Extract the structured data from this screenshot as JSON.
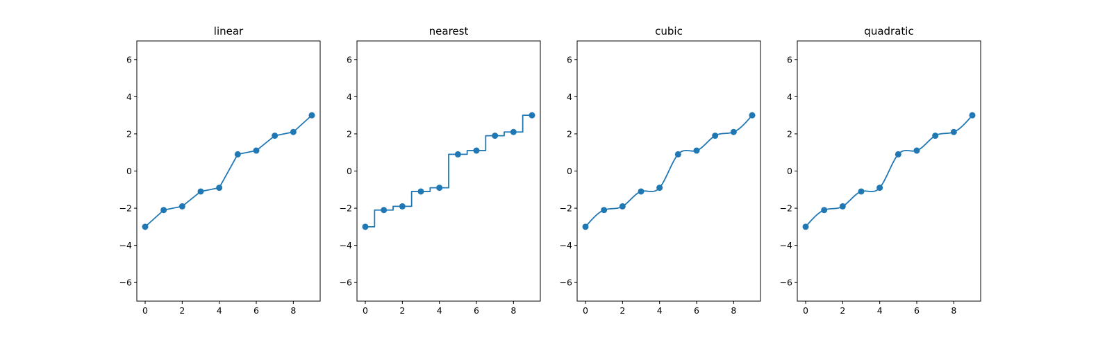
{
  "figure": {
    "background": "#ffffff",
    "line_color": "#1f77b4",
    "marker_color": "#1f77b4"
  },
  "chart_data": [
    {
      "type": "line",
      "title": "linear",
      "interpolation": "linear",
      "x": [
        0,
        1,
        2,
        3,
        4,
        5,
        6,
        7,
        8,
        9
      ],
      "y": [
        -3,
        -2.1,
        -1.9,
        -1.1,
        -0.9,
        0.9,
        1.1,
        1.9,
        2.1,
        3
      ],
      "xlim": [
        -0.45,
        9.45
      ],
      "ylim": [
        -7,
        7
      ],
      "xticks": [
        0,
        2,
        4,
        6,
        8
      ],
      "yticks": [
        -6,
        -4,
        -2,
        0,
        2,
        4,
        6
      ],
      "xtick_labels": [
        "0",
        "2",
        "4",
        "6",
        "8"
      ],
      "ytick_labels": [
        "−6",
        "−4",
        "−2",
        "0",
        "2",
        "4",
        "6"
      ],
      "markers": true,
      "grid": false
    },
    {
      "type": "line",
      "title": "nearest",
      "interpolation": "nearest",
      "x": [
        0,
        1,
        2,
        3,
        4,
        5,
        6,
        7,
        8,
        9
      ],
      "y": [
        -3,
        -2.1,
        -1.9,
        -1.1,
        -0.9,
        0.9,
        1.1,
        1.9,
        2.1,
        3
      ],
      "xlim": [
        -0.45,
        9.45
      ],
      "ylim": [
        -7,
        7
      ],
      "xticks": [
        0,
        2,
        4,
        6,
        8
      ],
      "yticks": [
        -6,
        -4,
        -2,
        0,
        2,
        4,
        6
      ],
      "xtick_labels": [
        "0",
        "2",
        "4",
        "6",
        "8"
      ],
      "ytick_labels": [
        "−6",
        "−4",
        "−2",
        "0",
        "2",
        "4",
        "6"
      ],
      "markers": true,
      "grid": false
    },
    {
      "type": "line",
      "title": "cubic",
      "interpolation": "cubic",
      "x": [
        0,
        1,
        2,
        3,
        4,
        5,
        6,
        7,
        8,
        9
      ],
      "y": [
        -3,
        -2.1,
        -1.9,
        -1.1,
        -0.9,
        0.9,
        1.1,
        1.9,
        2.1,
        3
      ],
      "xlim": [
        -0.45,
        9.45
      ],
      "ylim": [
        -7,
        7
      ],
      "xticks": [
        0,
        2,
        4,
        6,
        8
      ],
      "yticks": [
        -6,
        -4,
        -2,
        0,
        2,
        4,
        6
      ],
      "xtick_labels": [
        "0",
        "2",
        "4",
        "6",
        "8"
      ],
      "ytick_labels": [
        "−6",
        "−4",
        "−2",
        "0",
        "2",
        "4",
        "6"
      ],
      "markers": true,
      "grid": false
    },
    {
      "type": "line",
      "title": "quadratic",
      "interpolation": "quadratic",
      "x": [
        0,
        1,
        2,
        3,
        4,
        5,
        6,
        7,
        8,
        9
      ],
      "y": [
        -3,
        -2.1,
        -1.9,
        -1.1,
        -0.9,
        0.9,
        1.1,
        1.9,
        2.1,
        3
      ],
      "xlim": [
        -0.45,
        9.45
      ],
      "ylim": [
        -7,
        7
      ],
      "xticks": [
        0,
        2,
        4,
        6,
        8
      ],
      "yticks": [
        -6,
        -4,
        -2,
        0,
        2,
        4,
        6
      ],
      "xtick_labels": [
        "0",
        "2",
        "4",
        "6",
        "8"
      ],
      "ytick_labels": [
        "−6",
        "−4",
        "−2",
        "0",
        "2",
        "4",
        "6"
      ],
      "markers": true,
      "grid": false
    }
  ]
}
